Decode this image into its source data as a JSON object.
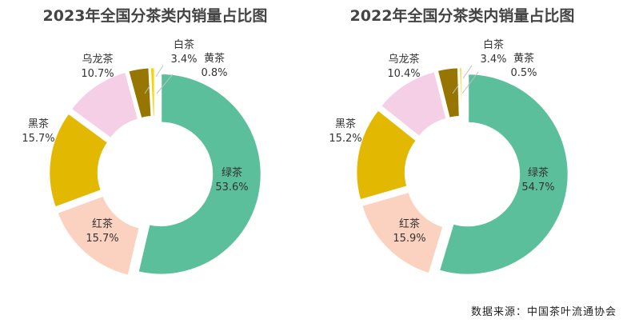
{
  "chart_data": [
    {
      "type": "pie",
      "title": "2023年全国分茶类内销量占比图",
      "slices": [
        {
          "name": "绿茶",
          "value": 53.6,
          "label": "53.6%",
          "color": "#5cbf9b"
        },
        {
          "name": "红茶",
          "value": 15.7,
          "label": "15.7%",
          "color": "#fbd1c0"
        },
        {
          "name": "黑茶",
          "value": 15.7,
          "label": "15.7%",
          "color": "#e3b800"
        },
        {
          "name": "乌龙茶",
          "value": 10.7,
          "label": "10.7%",
          "color": "#f5cfe6"
        },
        {
          "name": "白茶",
          "value": 3.4,
          "label": "3.4%",
          "color": "#967600"
        },
        {
          "name": "黄茶",
          "value": 0.8,
          "label": "0.8%",
          "color": "#f2d60a"
        }
      ]
    },
    {
      "type": "pie",
      "title": "2022年全国分茶类内销量占比图",
      "slices": [
        {
          "name": "绿茶",
          "value": 54.7,
          "label": "54.7%",
          "color": "#5cbf9b"
        },
        {
          "name": "红茶",
          "value": 15.9,
          "label": "15.9%",
          "color": "#fbd1c0"
        },
        {
          "name": "黑茶",
          "value": 15.2,
          "label": "15.2%",
          "color": "#e3b800"
        },
        {
          "name": "乌龙茶",
          "value": 10.4,
          "label": "10.4%",
          "color": "#f5cfe6"
        },
        {
          "name": "白茶",
          "value": 3.4,
          "label": "3.4%",
          "color": "#967600"
        },
        {
          "name": "黄茶",
          "value": 0.5,
          "label": "0.5%",
          "color": "#f2d60a"
        }
      ]
    }
  ],
  "source": "数据来源：中国茶叶流通协会"
}
